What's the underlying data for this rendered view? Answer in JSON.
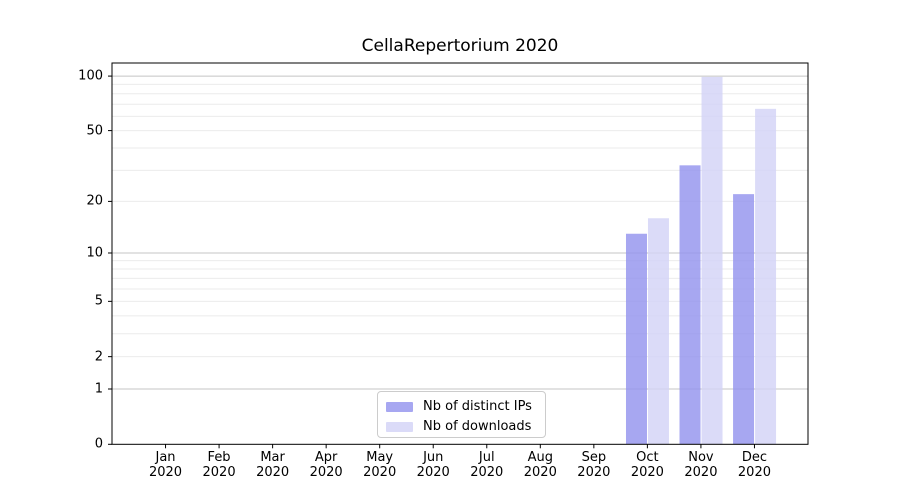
{
  "chart_data": {
    "type": "bar",
    "title": "CellaRepertorium 2020",
    "months": [
      "Jan",
      "Feb",
      "Mar",
      "Apr",
      "May",
      "Jun",
      "Jul",
      "Aug",
      "Sep",
      "Oct",
      "Nov",
      "Dec"
    ],
    "year": "2020",
    "series": [
      {
        "name": "Nb of distinct IPs",
        "color": "#9494ee",
        "values": [
          0,
          0,
          0,
          0,
          0,
          0,
          0,
          0,
          0,
          13,
          32,
          22
        ]
      },
      {
        "name": "Nb of downloads",
        "color": "#d3d3f6",
        "values": [
          0,
          0,
          0,
          0,
          0,
          0,
          0,
          0,
          0,
          16,
          99,
          66
        ]
      }
    ],
    "y_scale": "log10(value+1)",
    "y_ticks": [
      0,
      1,
      2,
      5,
      10,
      20,
      50,
      100
    ],
    "y_gridlines_major": [
      1,
      10,
      100
    ],
    "y_gridlines_minor": [
      2,
      3,
      4,
      5,
      6,
      7,
      8,
      9,
      20,
      30,
      40,
      50,
      60,
      70,
      80,
      90
    ],
    "ylim": [
      0,
      118
    ],
    "legend_position": "lower center",
    "grid": true
  },
  "colors": {
    "background": "#ffffff",
    "bar_distinct_ips": "#9494ee",
    "bar_downloads": "#d3d3f6",
    "bar_opacity": 0.82,
    "grid_major": "#c4c4c4",
    "grid_minor": "#ebebeb",
    "spine": "#000000",
    "text": "#000000",
    "legend_border": "#cccccc"
  }
}
